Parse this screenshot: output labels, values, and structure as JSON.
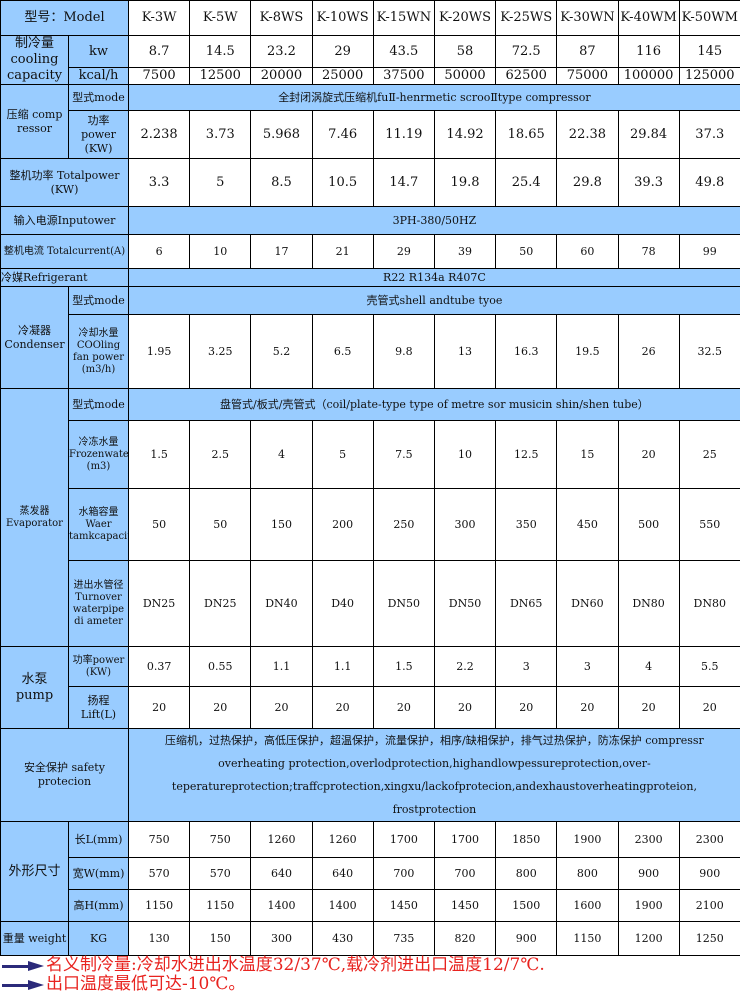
{
  "colors": {
    "header_bg": "#99ccff",
    "note_text": "#e8231f",
    "arrow": "#2b2a7a"
  },
  "labels": {
    "model": "型号：Model",
    "cooling": "制冷量 cooling capacity",
    "kw": "kw",
    "kcal": "kcal/h",
    "compressor": "压缩 comp ressor",
    "comp_mode": "型式mode",
    "comp_power": "功率 power (KW)",
    "total_power": "整机功率 Totalpower (KW)",
    "input_power": "输入电源Inputower",
    "total_current": "整机电流 Totalcurrent(A)",
    "refrigerant": "冷媒Refrigerant",
    "condenser": "冷凝器 Condenser",
    "cond_mode": "型式mode",
    "cond_water": "冷却水量 COOling fan power (m3/h)",
    "evaporator": "蒸发器 Evaporator",
    "evap_mode": "型式mode",
    "frozen": "冷冻水量 Frozenwater (m3)",
    "tank": "水箱容量 Waer tamkcapacity(L)",
    "pipe": "进出水管径 Turnover waterpipe di ameter",
    "pump": "水泵 pump",
    "pump_power": "功率power (KW)",
    "lift": "扬程 Lift(L)",
    "safety": "安全保护 safety protecion",
    "dimensions": "外形尺寸",
    "length": "长L(mm)",
    "width": "宽W(mm)",
    "height": "高H(mm)",
    "weight": "重量 weight",
    "kg": "KG"
  },
  "spans": {
    "comp_mode": "全封闭涡旋式压缩机fuⅡ-henrmetic scrooⅡtype compressor",
    "input_power": "3PH-380/50HZ",
    "refrigerant": "R22 R134a R407C",
    "cond_mode": "壳管式shell andtube tyoe",
    "evap_mode": "盘管式/板式/壳管式（coil/plate-type type of metre sor musicin shin/shen tube）",
    "safety": "压缩机，过热保护，高低压保护，超温保护，流量保护，相序/缺相保护，排气过热保护，防冻保护 compressr overheating protection,overlodprotection,highandlowpessureprotection,over-teperatureprotection;traffcprotection,xingxu/lackofprotecion,andexhaustoverheatingproteion,     frostprotection"
  },
  "specs": {
    "model": [
      "K-3W",
      "K-5W",
      "K-8WS",
      "K-10WS",
      "K-15WN",
      "K-20WS",
      "K-25WS",
      "K-30WN",
      "K-40WM",
      "K-50WM"
    ],
    "kw": [
      "8.7",
      "14.5",
      "23.2",
      "29",
      "43.5",
      "58",
      "72.5",
      "87",
      "116",
      "145"
    ],
    "kcal": [
      "7500",
      "12500",
      "20000",
      "25000",
      "37500",
      "50000",
      "62500",
      "75000",
      "100000",
      "125000"
    ],
    "comp_power": [
      "2.238",
      "3.73",
      "5.968",
      "7.46",
      "11.19",
      "14.92",
      "18.65",
      "22.38",
      "29.84",
      "37.3"
    ],
    "total_power": [
      "3.3",
      "5",
      "8.5",
      "10.5",
      "14.7",
      "19.8",
      "25.4",
      "29.8",
      "39.3",
      "49.8"
    ],
    "total_current": [
      "6",
      "10",
      "17",
      "21",
      "29",
      "39",
      "50",
      "60",
      "78",
      "99"
    ],
    "cond_water": [
      "1.95",
      "3.25",
      "5.2",
      "6.5",
      "9.8",
      "13",
      "16.3",
      "19.5",
      "26",
      "32.5"
    ],
    "frozen": [
      "1.5",
      "2.5",
      "4",
      "5",
      "7.5",
      "10",
      "12.5",
      "15",
      "20",
      "25"
    ],
    "tank": [
      "50",
      "50",
      "150",
      "200",
      "250",
      "300",
      "350",
      "450",
      "500",
      "550"
    ],
    "pipe": [
      "DN25",
      "DN25",
      "DN40",
      "D40",
      "DN50",
      "DN50",
      "DN65",
      "DN60",
      "DN80",
      "DN80"
    ],
    "pump_power": [
      "0.37",
      "0.55",
      "1.1",
      "1.1",
      "1.5",
      "2.2",
      "3",
      "3",
      "4",
      "5.5"
    ],
    "lift": [
      "20",
      "20",
      "20",
      "20",
      "20",
      "20",
      "20",
      "20",
      "20",
      "20"
    ],
    "length": [
      "750",
      "750",
      "1260",
      "1260",
      "1700",
      "1700",
      "1850",
      "1900",
      "2300",
      "2300"
    ],
    "width": [
      "570",
      "570",
      "640",
      "640",
      "700",
      "700",
      "800",
      "800",
      "900",
      "900"
    ],
    "height": [
      "1150",
      "1150",
      "1400",
      "1400",
      "1450",
      "1450",
      "1500",
      "1600",
      "1900",
      "2100"
    ],
    "weight": [
      "130",
      "150",
      "300",
      "430",
      "735",
      "820",
      "900",
      "1150",
      "1200",
      "1250"
    ]
  },
  "notes": [
    "名义制冷量:冷却水进出水温度32/37℃,载冷剂进出口温度12/7℃.",
    "出口温度最低可达-10℃。"
  ]
}
